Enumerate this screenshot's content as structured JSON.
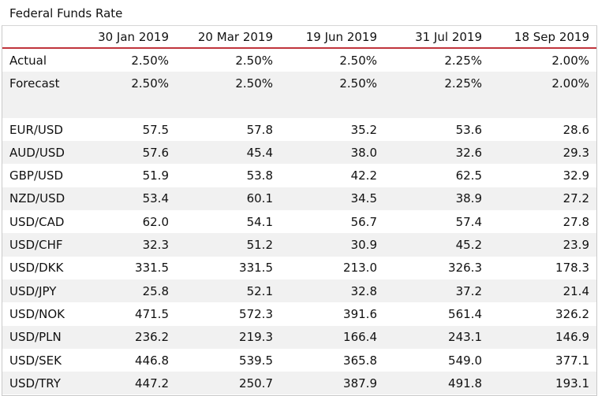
{
  "title": "Federal Funds Rate",
  "columns": [
    "30 Jan 2019",
    "20 Mar 2019",
    "19 Jun 2019",
    "31 Jul 2019",
    "18 Sep 2019"
  ],
  "rows": [
    {
      "label": "Actual",
      "values": [
        "2.50%",
        "2.50%",
        "2.50%",
        "2.25%",
        "2.00%"
      ]
    },
    {
      "label": "Forecast",
      "values": [
        "2.50%",
        "2.50%",
        "2.50%",
        "2.25%",
        "2.00%"
      ]
    },
    {
      "label": "",
      "values": [
        "",
        "",
        "",
        "",
        ""
      ]
    },
    {
      "label": "EUR/USD",
      "values": [
        "57.5",
        "57.8",
        "35.2",
        "53.6",
        "28.6"
      ]
    },
    {
      "label": "AUD/USD",
      "values": [
        "57.6",
        "45.4",
        "38.0",
        "32.6",
        "29.3"
      ]
    },
    {
      "label": "GBP/USD",
      "values": [
        "51.9",
        "53.8",
        "42.2",
        "62.5",
        "32.9"
      ]
    },
    {
      "label": "NZD/USD",
      "values": [
        "53.4",
        "60.1",
        "34.5",
        "38.9",
        "27.2"
      ]
    },
    {
      "label": "USD/CAD",
      "values": [
        "62.0",
        "54.1",
        "56.7",
        "57.4",
        "27.8"
      ]
    },
    {
      "label": "USD/CHF",
      "values": [
        "32.3",
        "51.2",
        "30.9",
        "45.2",
        "23.9"
      ]
    },
    {
      "label": "USD/DKK",
      "values": [
        "331.5",
        "331.5",
        "213.0",
        "326.3",
        "178.3"
      ]
    },
    {
      "label": "USD/JPY",
      "values": [
        "25.8",
        "52.1",
        "32.8",
        "37.2",
        "21.4"
      ]
    },
    {
      "label": "USD/NOK",
      "values": [
        "471.5",
        "572.3",
        "391.6",
        "561.4",
        "326.2"
      ]
    },
    {
      "label": "USD/PLN",
      "values": [
        "236.2",
        "219.3",
        "166.4",
        "243.1",
        "146.9"
      ]
    },
    {
      "label": "USD/SEK",
      "values": [
        "446.8",
        "539.5",
        "365.8",
        "549.0",
        "377.1"
      ]
    },
    {
      "label": "USD/TRY",
      "values": [
        "447.2",
        "250.7",
        "387.9",
        "491.8",
        "193.1"
      ]
    }
  ],
  "colors": {
    "header_rule": "#c0343c",
    "row_alt": "#f1f1f1"
  }
}
